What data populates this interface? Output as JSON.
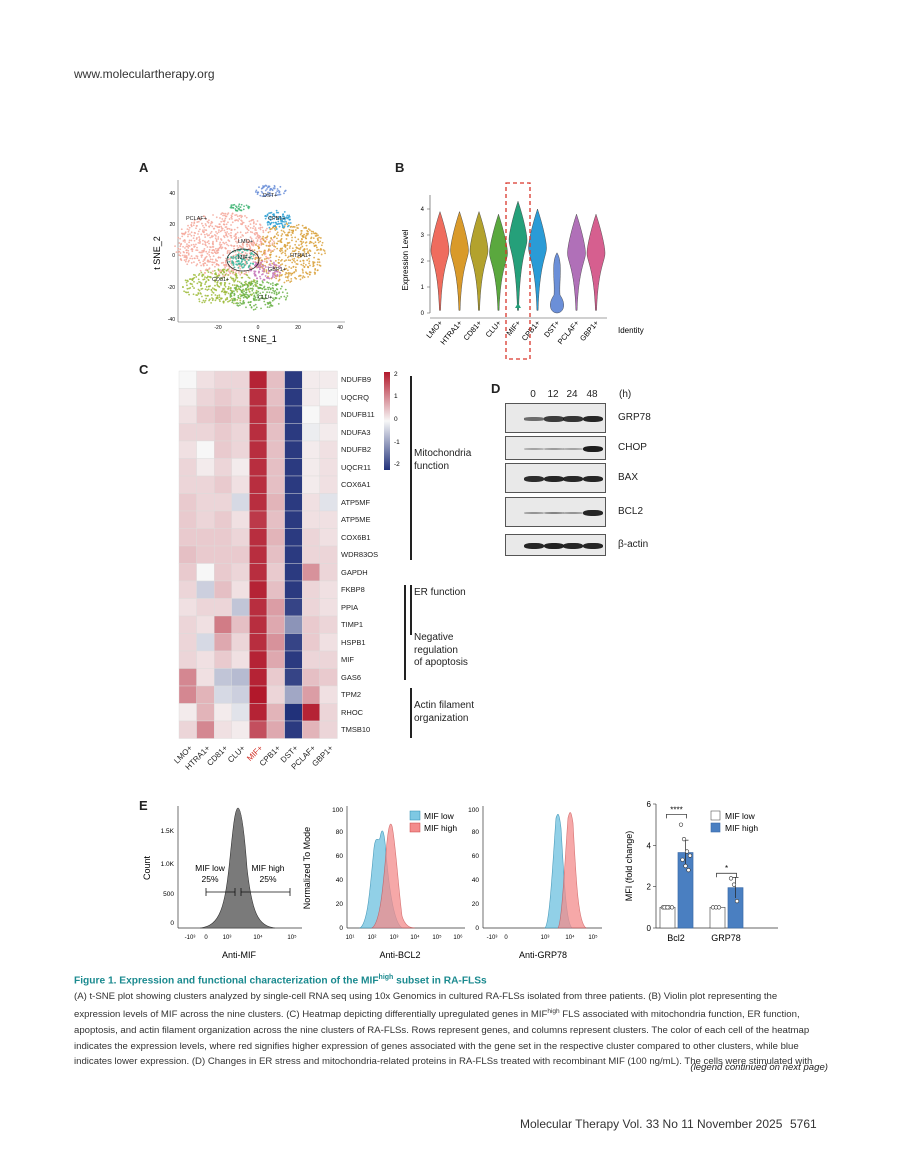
{
  "header": {
    "url": "www.moleculartherapy.org"
  },
  "panels": {
    "A": {
      "label": "A",
      "xlabel": "t SNE_1",
      "ylabel": "t SNE_2",
      "xticks": [
        "-20",
        "0",
        "20",
        "40"
      ],
      "yticks": [
        "40",
        "20",
        "0",
        "-20",
        "-40"
      ],
      "cluster_labels": [
        "PCLAF+",
        "DST+",
        "CPB1+",
        "LMO+",
        "MIF+",
        "HTRA1+",
        "CD81+",
        "GBP1+",
        "CLU+"
      ]
    },
    "B": {
      "label": "B",
      "ylabel": "Expression Level",
      "yticks": [
        "0",
        "1",
        "2",
        "3",
        "4"
      ],
      "identity_label": "Identity"
    },
    "C": {
      "label": "C",
      "clusters": [
        "LMO+",
        "HTRA1+",
        "CD81+",
        "CLU+",
        "MIF+",
        "CPB1+",
        "DST+",
        "PCLAF+",
        "GBP1+"
      ],
      "highlight_cluster": "MIF+",
      "genes": [
        "NDUFB9",
        "UQCRQ",
        "NDUFB11",
        "NDUFA3",
        "NDUFB2",
        "UQCR11",
        "COX6A1",
        "ATP5MF",
        "ATP5ME",
        "COX6B1",
        "WDR83OS",
        "GAPDH",
        "FKBP8",
        "PPIA",
        "TIMP1",
        "HSPB1",
        "MIF",
        "GAS6",
        "TPM2",
        "RHOC",
        "TMSB10"
      ],
      "colorbar_ticks": [
        "2",
        "1",
        "0",
        "-1",
        "-2"
      ],
      "groups": [
        {
          "name": "Mitochondria function",
          "lines": [
            "Mitochondria",
            "function"
          ]
        },
        {
          "name": "ER function",
          "lines": [
            "ER function"
          ]
        },
        {
          "name": "Negative regulation of apoptosis",
          "lines": [
            "Negative",
            "regulation",
            "of apoptosis"
          ]
        },
        {
          "name": "Actin filament organization",
          "lines": [
            "Actin filament",
            "organization"
          ]
        }
      ],
      "matrix": [
        [
          0,
          0.2,
          0.3,
          0.3,
          1.9,
          0.5,
          -1.9,
          0.1,
          0.1
        ],
        [
          0.1,
          0.3,
          0.4,
          0.3,
          1.8,
          0.5,
          -1.9,
          0.1,
          0.0
        ],
        [
          0.2,
          0.4,
          0.5,
          0.4,
          1.8,
          0.6,
          -1.9,
          0.0,
          0.2
        ],
        [
          0.3,
          0.3,
          0.4,
          0.3,
          1.8,
          0.5,
          -1.9,
          -0.1,
          0.1
        ],
        [
          0.2,
          0.0,
          0.4,
          0.3,
          1.8,
          0.5,
          -1.9,
          0.1,
          0.2
        ],
        [
          0.3,
          0.1,
          0.3,
          0.1,
          1.8,
          0.5,
          -1.9,
          0.1,
          0.2
        ],
        [
          0.3,
          0.3,
          0.4,
          0.2,
          1.8,
          0.5,
          -1.9,
          0.1,
          0.2
        ],
        [
          0.4,
          0.3,
          0.3,
          -0.3,
          1.8,
          0.6,
          -1.9,
          0.2,
          -0.2
        ],
        [
          0.4,
          0.3,
          0.4,
          0.2,
          1.7,
          0.5,
          -1.9,
          0.2,
          0.2
        ],
        [
          0.4,
          0.4,
          0.4,
          0.3,
          1.8,
          0.6,
          -1.9,
          0.3,
          0.2
        ],
        [
          0.5,
          0.4,
          0.4,
          0.4,
          1.8,
          0.5,
          -1.9,
          0.3,
          0.3
        ],
        [
          0.4,
          0.0,
          0.4,
          0.3,
          1.8,
          0.4,
          -1.9,
          0.9,
          0.3
        ],
        [
          0.3,
          -0.4,
          0.5,
          0.2,
          1.9,
          0.5,
          -1.9,
          0.3,
          0.2
        ],
        [
          0.2,
          0.3,
          0.3,
          -0.5,
          1.8,
          0.8,
          -1.8,
          0.3,
          0.2
        ],
        [
          0.3,
          0.2,
          1.1,
          0.5,
          1.8,
          0.7,
          -1.0,
          0.4,
          0.3
        ],
        [
          0.3,
          -0.3,
          0.7,
          0.3,
          1.8,
          0.9,
          -1.8,
          0.4,
          0.2
        ],
        [
          0.3,
          0.2,
          0.4,
          0.2,
          1.9,
          0.7,
          -1.9,
          0.3,
          0.3
        ],
        [
          1.0,
          0.2,
          -0.5,
          -0.6,
          1.9,
          0.4,
          -1.8,
          0.5,
          0.4
        ],
        [
          1.0,
          0.6,
          -0.3,
          -0.4,
          2.0,
          0.3,
          -0.8,
          0.8,
          0.2
        ],
        [
          0.1,
          0.6,
          0.1,
          -0.2,
          1.9,
          0.6,
          -2.0,
          1.9,
          0.3
        ],
        [
          0.3,
          1.0,
          0.2,
          0.1,
          1.5,
          0.7,
          -1.9,
          0.6,
          0.3
        ]
      ]
    },
    "D": {
      "label": "D",
      "timepoints": [
        "0",
        "12",
        "24",
        "48"
      ],
      "unit": "(h)",
      "proteins": [
        "GRP78",
        "CHOP",
        "BAX",
        "BCL2",
        "β-actin"
      ],
      "band_intensity": [
        [
          0.45,
          0.75,
          0.8,
          0.9
        ],
        [
          0.1,
          0.15,
          0.1,
          0.95
        ],
        [
          0.85,
          0.9,
          0.88,
          0.9
        ],
        [
          0.2,
          0.3,
          0.2,
          0.9
        ],
        [
          0.9,
          0.92,
          0.9,
          0.9
        ]
      ]
    },
    "E": {
      "label": "E",
      "hist1": {
        "ylabel": "Count",
        "xlabel": "Anti-MIF",
        "yticks": [
          "0",
          "500",
          "1.0K",
          "1.5K"
        ],
        "low_label": "MIF low",
        "low_pct": "25%",
        "high_label": "MIF high",
        "high_pct": "25%"
      },
      "hist2": {
        "ylabel": "Normalized To Mode",
        "xlabel": "Anti-BCL2",
        "yticks": [
          "0",
          "20",
          "40",
          "60",
          "80",
          "100"
        ],
        "legend": [
          "MIF low",
          "MIF high"
        ]
      },
      "hist3": {
        "xlabel": "Anti-GRP78",
        "yticks": [
          "0",
          "20",
          "40",
          "60",
          "80",
          "100"
        ]
      },
      "bar": {
        "ylabel": "MFI (fold change)",
        "yticks": [
          "0",
          "2",
          "4",
          "6"
        ],
        "legend": [
          "MIF low",
          "MIF high"
        ],
        "significance": [
          "****",
          "*"
        ]
      }
    }
  },
  "chart_data": {
    "type": "bar",
    "title": "",
    "categories": [
      "Bcl2",
      "GRP78"
    ],
    "series": [
      {
        "name": "MIF low",
        "values": [
          1.0,
          1.0
        ],
        "color": "#ffffff"
      },
      {
        "name": "MIF high",
        "values": [
          3.65,
          1.95
        ],
        "color": "#4a7fc1"
      }
    ],
    "points": {
      "MIF low": [
        [
          1.0,
          1.0,
          1.0,
          1.0,
          1.0,
          1.0
        ],
        [
          1.0,
          1.0,
          1.0
        ]
      ],
      "MIF high": [
        [
          5.0,
          4.3,
          3.7,
          3.5,
          3.3,
          3.0,
          2.8
        ],
        [
          2.4,
          2.1,
          1.3
        ]
      ]
    },
    "errors": {
      "MIF high": [
        0.6,
        0.5
      ]
    },
    "xlabel": "",
    "ylabel": "MFI (fold change)",
    "ylim": [
      0,
      6
    ],
    "significance": [
      "****",
      "*"
    ]
  },
  "caption": {
    "title_prefix": "Figure 1. Expression and functional characterization of the MIF",
    "title_sup": "high",
    "title_suffix": " subset in RA-FLSs",
    "lines": [
      "(A) t-SNE plot showing clusters analyzed by single-cell RNA seq using 10x Genomics in cultured RA-FLSs isolated from three patients. (B) Violin plot representing the",
      "expression levels of MIF across the nine clusters. (C) Heatmap depicting differentially upregulated genes in MIF",
      "apoptosis, and actin filament organization across the nine clusters of RA-FLSs. Rows represent genes, and columns represent clusters. The color of each cell of the heatmap",
      "indicates the expression levels, where red signifies higher expression of genes associated with the gene set in the respective cluster compared to other clusters, while blue",
      "indicates lower expression. (D) Changes in ER stress and mitochondria-related proteins in RA-FLSs treated with recombinant MIF (100 ng/mL). The cells were stimulated with"
    ],
    "line2_sup": "high",
    "line2_rest": " FLS associated with mitochondria function, ER function,",
    "continued": "(legend continued on next page)"
  },
  "footer": {
    "journal": "Molecular Therapy Vol. 33 No 11 November 2025",
    "page": "5761"
  }
}
